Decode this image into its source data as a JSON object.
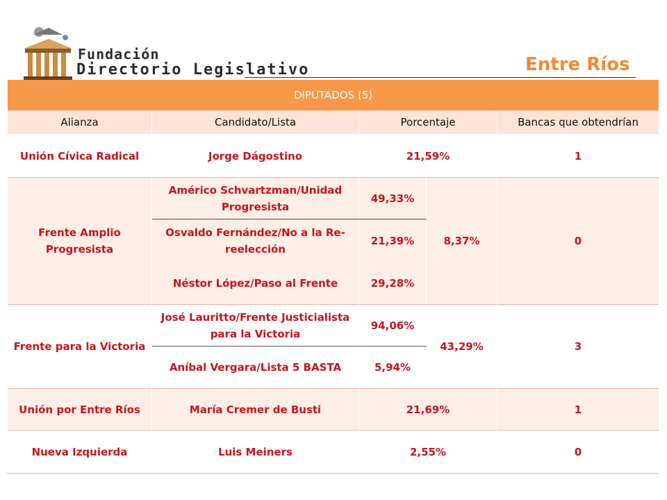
{
  "header": {
    "logo_line1": "Fundación",
    "logo_line2": "Directorio Legislativo",
    "title": "Entre Ríos"
  },
  "table": {
    "caption": "DIPUTADOS (5)",
    "columns": [
      "Alianza",
      "Candidato/Lista",
      "Porcentaje",
      "Bancas que obtendrían"
    ],
    "rows": {
      "ucr": {
        "alianza": "Unión Cívica Radical",
        "candidato": "Jorge Dágostino",
        "porcentaje": "21,59%",
        "bancas": "1"
      },
      "fap": {
        "alianza": "Frente Amplio Progresista",
        "total": "8,37%",
        "bancas": "0",
        "listas": [
          {
            "candidato": "Américo Schvartzman/Unidad Progresista",
            "porcentaje": "49,33%"
          },
          {
            "candidato": "Osvaldo Fernández/No a la Re-reelección",
            "porcentaje": "21,39%"
          },
          {
            "candidato": "Néstor López/Paso al Frente",
            "porcentaje": "29,28%"
          }
        ]
      },
      "fpv": {
        "alianza": "Frente para la Victoria",
        "total": "43,29%",
        "bancas": "3",
        "listas": [
          {
            "candidato": "José Lauritto/Frente Justicialista para la Victoria",
            "porcentaje": "94,06%"
          },
          {
            "candidato": "Aníbal Vergara/Lista 5 BASTA",
            "porcentaje": "5,94%"
          }
        ]
      },
      "uer": {
        "alianza": "Unión por Entre Ríos",
        "candidato": "María Cremer de Busti",
        "porcentaje": "21,69%",
        "bancas": "1"
      },
      "ni": {
        "alianza": "Nueva Izquierda",
        "candidato": "Luis Meiners",
        "porcentaje": "2,55%",
        "bancas": "0"
      }
    }
  },
  "colors": {
    "accent": "#f7882f",
    "header_bg": "#f7974a",
    "tint": "#fdeee6",
    "value_red": "#c4161c"
  }
}
